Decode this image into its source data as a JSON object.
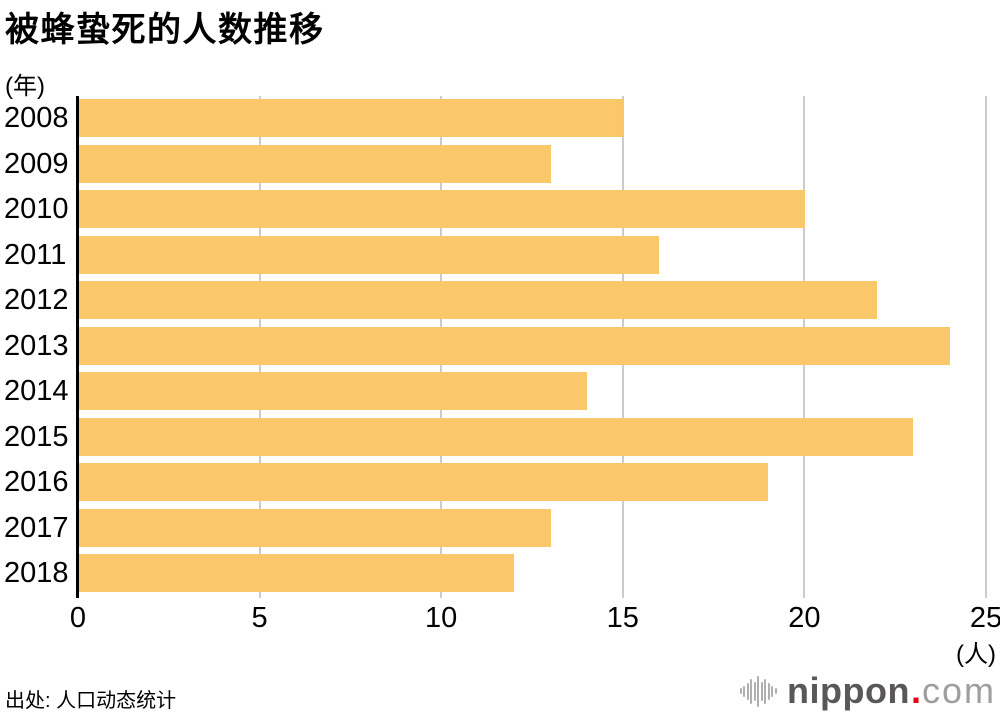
{
  "header": {
    "title": "被蜂蛰死的人数推移",
    "y_axis_unit": "(年)"
  },
  "chart_data": {
    "type": "bar",
    "orientation": "horizontal",
    "title": "被蜂蛰死的人数推移",
    "categories": [
      "2008",
      "2009",
      "2010",
      "2011",
      "2012",
      "2013",
      "2014",
      "2015",
      "2016",
      "2017",
      "2018"
    ],
    "values": [
      15,
      13,
      20,
      16,
      22,
      24,
      14,
      23,
      19,
      13,
      12
    ],
    "xlim": [
      0,
      25
    ],
    "xticks": [
      0,
      5,
      10,
      15,
      20,
      25
    ],
    "x_axis_unit": "(人)",
    "y_axis_unit": "(年)",
    "grid": true,
    "legend_position": "none",
    "bar_color": "#FBC76B",
    "grid_color": "#CBCBCB",
    "axis_color": "#000000"
  },
  "footer": {
    "source": "出处: 人口动态统计"
  },
  "logo": {
    "brand": "nippon",
    "dot": ".",
    "tld": "com",
    "brand_color": "#595757",
    "dot_color": "#E60012",
    "tld_color": "#9E9E9E",
    "icon_color": "#AFAFAF"
  }
}
